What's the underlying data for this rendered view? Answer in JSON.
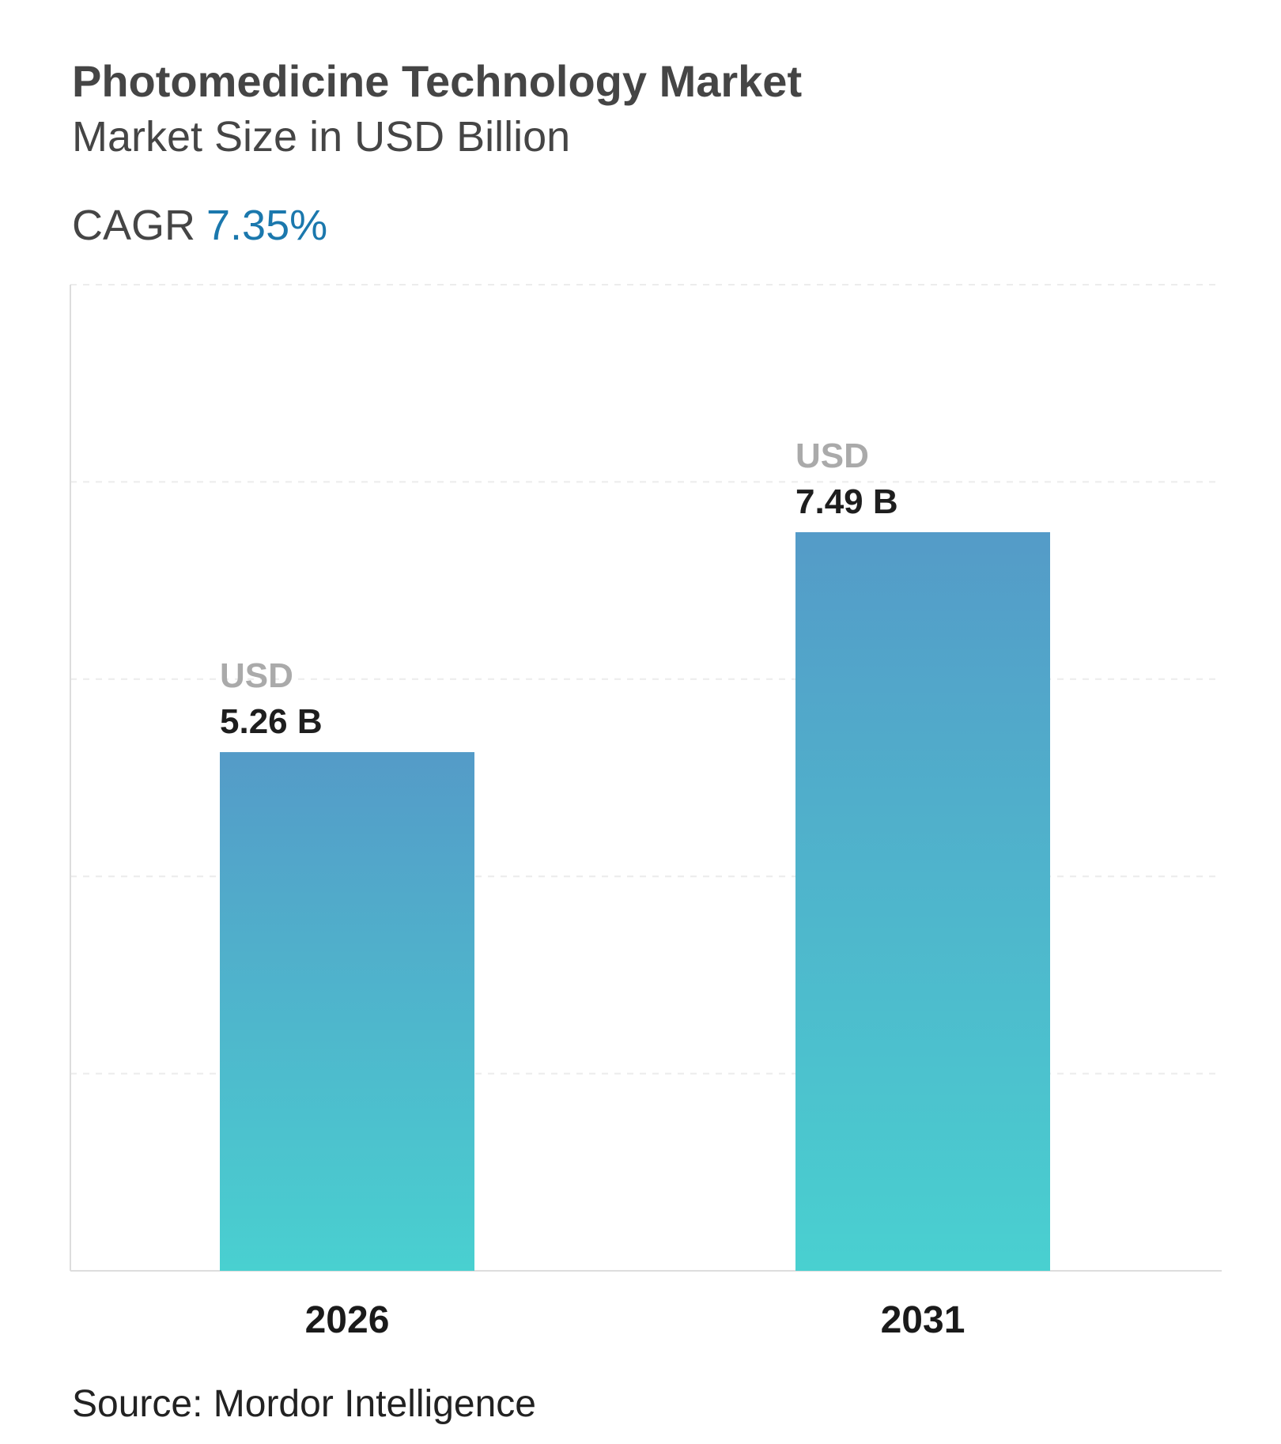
{
  "header": {
    "title": "Photomedicine Technology Market",
    "subtitle": "Market Size in USD Billion",
    "cagr_label": "CAGR",
    "cagr_value": "7.35%"
  },
  "chart_data": {
    "type": "bar",
    "categories": [
      "2026",
      "2031"
    ],
    "values": [
      5.26,
      7.49
    ],
    "value_prefix": "USD",
    "value_labels": [
      "5.26 B",
      "7.49 B"
    ],
    "ylim": [
      0,
      10
    ],
    "grid": true,
    "colors": {
      "bar_top": "#549bc8",
      "bar_bottom": "#49d0d0",
      "prefix": "#aaaaaa",
      "value": "#1e1e1e",
      "axis": "#dddddd",
      "grid": "#ececec"
    }
  },
  "footer": {
    "source": "Source: Mordor Intelligence"
  }
}
